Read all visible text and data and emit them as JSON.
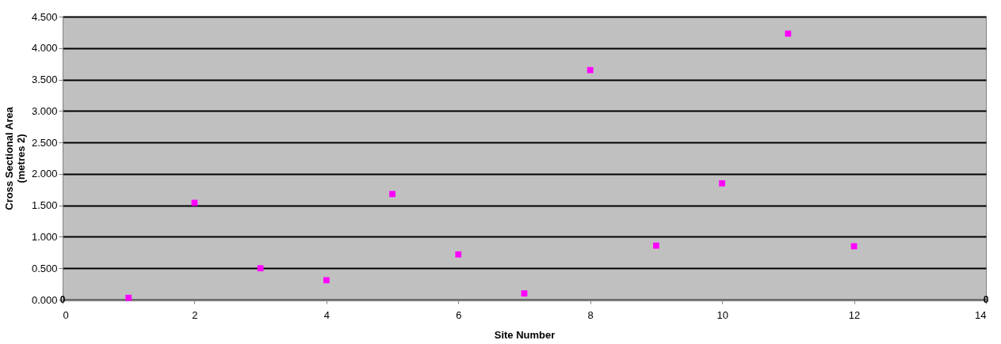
{
  "chart_data": {
    "type": "scatter",
    "xlabel": "Site Number",
    "ylabel": "Cross Sectional Area\n(metres 2)",
    "x": [
      1,
      2,
      3,
      4,
      5,
      6,
      7,
      8,
      9,
      10,
      11,
      12
    ],
    "series": [
      {
        "color": "#ff00ff",
        "values": [
          0.03,
          1.54,
          0.5,
          0.31,
          1.68,
          0.72,
          0.1,
          3.65,
          0.86,
          1.85,
          4.23,
          0.85
        ]
      }
    ],
    "xlim": [
      0,
      14
    ],
    "xticks": [
      0,
      2,
      4,
      6,
      8,
      10,
      12,
      14
    ],
    "ylim": [
      0,
      4.5
    ],
    "yticks": [
      {
        "value": 0,
        "label": "0.000"
      },
      {
        "value": 0.5,
        "label": "0.500"
      },
      {
        "value": 1,
        "label": "1.000"
      },
      {
        "value": 1.5,
        "label": "1.500"
      },
      {
        "value": 2,
        "label": "2.000"
      },
      {
        "value": 2.5,
        "label": "2.500"
      },
      {
        "value": 3,
        "label": "3.000"
      },
      {
        "value": 3.5,
        "label": "3.500"
      },
      {
        "value": 4,
        "label": "4.000"
      },
      {
        "value": 4.5,
        "label": "4.500"
      }
    ],
    "annotations": [
      "0",
      "0"
    ],
    "grid": "y",
    "marker": "square"
  }
}
